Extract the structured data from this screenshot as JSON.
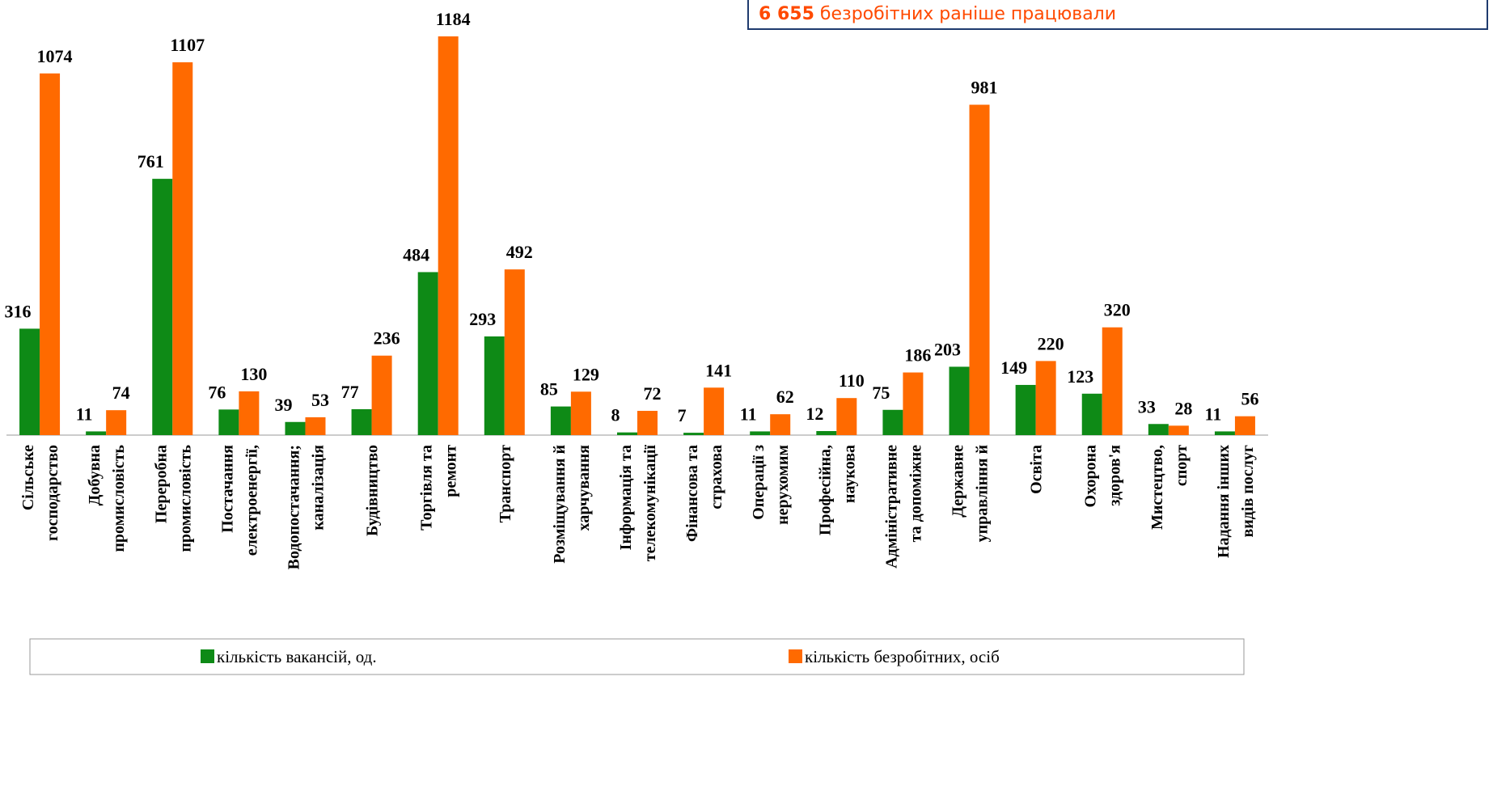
{
  "chart_data": {
    "type": "bar",
    "note_box": {
      "highlight": "6 655",
      "text": "безробітних раніше працювали"
    },
    "categories": [
      "Сільське\nгосподарство",
      "Добувна\nпромисловість",
      "Переробна\nпромисловість",
      "Постачання\nелектроенергії,",
      "Водопостачання;\nканалізація",
      "Будівництво",
      "Торгівля та\nремонт",
      "Транспорт",
      "Розміщування й\nхарчування",
      "Інформація та\nтелекомунікації",
      "Фінансова та\nстрахова",
      "Операції з\nнерухомим",
      "Професійна,\nнаукова",
      "Адміністративне\nта допоміжне",
      "Державне\nуправління й",
      "Освіта",
      "Охорона\nздоров'я",
      "Мистецтво,\nспорт",
      "Надання інших\nвидів послуг"
    ],
    "series": [
      {
        "name": "кількість вакансій, од.",
        "color": "#0e8a16",
        "values": [
          316,
          11,
          761,
          76,
          39,
          77,
          484,
          293,
          85,
          8,
          7,
          11,
          12,
          75,
          203,
          149,
          123,
          33,
          11
        ]
      },
      {
        "name": "кількість безробітних, осіб",
        "color": "#ff6a00",
        "values": [
          1074,
          74,
          1107,
          130,
          53,
          236,
          1184,
          492,
          129,
          72,
          141,
          62,
          110,
          186,
          981,
          220,
          320,
          28,
          56
        ]
      }
    ],
    "ylim": [
      0,
      1292
    ]
  }
}
